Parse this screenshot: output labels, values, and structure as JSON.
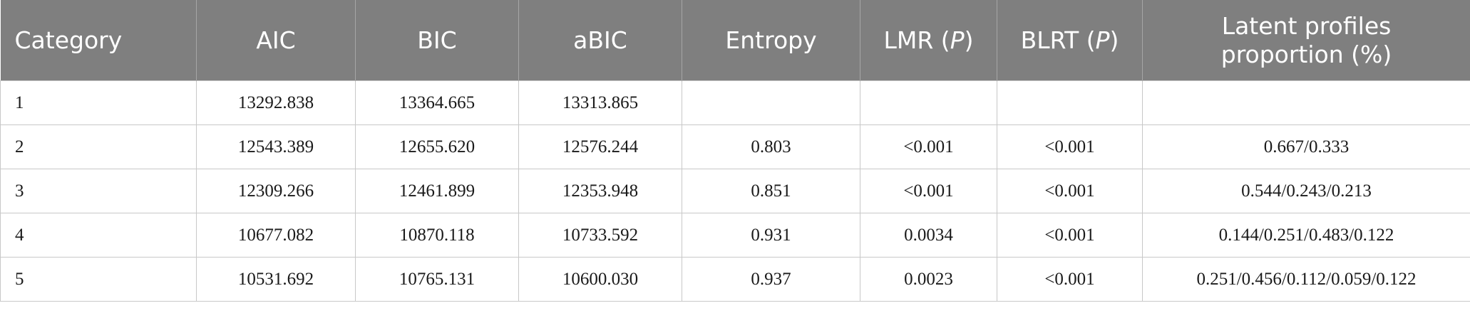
{
  "table": {
    "header": [
      [
        "Category"
      ],
      [
        "AIC"
      ],
      [
        "BIC"
      ],
      [
        "aBIC"
      ],
      [
        "Entropy"
      ],
      [
        "LMR (",
        "P",
        ")"
      ],
      [
        "BLRT (",
        "P",
        ")"
      ],
      [
        "Latent profiles proportion (%)"
      ]
    ],
    "rows": [
      [
        "1",
        "13292.838",
        "13364.665",
        "13313.865"
      ],
      [
        "2",
        "12543.389",
        "12655.620",
        "12576.244",
        "0.803",
        "<0.001",
        "<0.001",
        "0.667/0.333"
      ],
      [
        "3",
        "12309.266",
        "12461.899",
        "12353.948",
        "0.851",
        "<0.001",
        "<0.001",
        "0.544/0.243/0.213"
      ],
      [
        "4",
        "10677.082",
        "10870.118",
        "10733.592",
        "0.931",
        "0.0034",
        "<0.001",
        "0.144/0.251/0.483/0.122"
      ],
      [
        "5",
        "10531.692",
        "10765.131",
        "10600.030",
        "0.937",
        "0.0023",
        "<0.001",
        "0.251/0.456/0.112/0.059/0.122"
      ]
    ]
  }
}
